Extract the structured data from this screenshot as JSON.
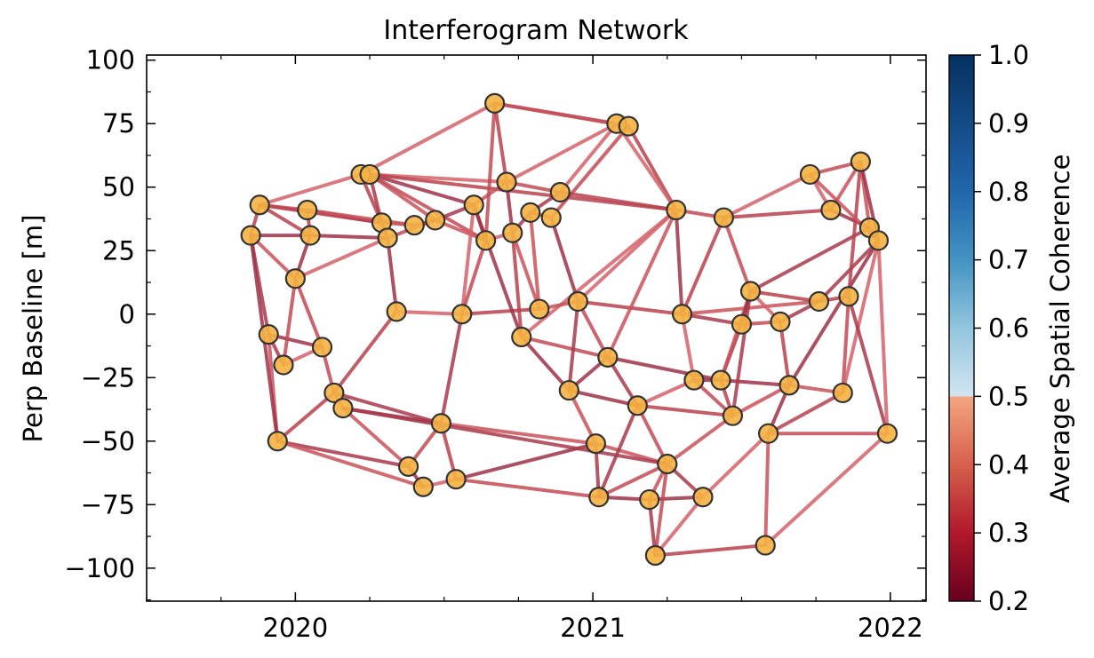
{
  "chart_data": {
    "type": "scatter",
    "title": "Interferogram Network",
    "xlabel": "",
    "ylabel": "Perp Baseline [m]",
    "xlim": [
      2019.5,
      2022.12
    ],
    "ylim": [
      -113,
      102
    ],
    "x_ticks": [
      2020,
      2021,
      2022
    ],
    "y_ticks": [
      -100,
      -75,
      -50,
      -25,
      0,
      25,
      50,
      75,
      100
    ],
    "colorbar": {
      "label": "Average Spatial Coherence",
      "range": [
        0.2,
        1.0
      ],
      "ticks": [
        0.2,
        0.3,
        0.4,
        0.5,
        0.6,
        0.7,
        0.8,
        0.9,
        1.0
      ],
      "colormap": "RdBu",
      "edge_color_sample": "#b8424e"
    },
    "node_style": {
      "face": "#f5b342",
      "edge": "#333333"
    },
    "nodes": [
      [
        2019.85,
        31
      ],
      [
        2019.88,
        43
      ],
      [
        2019.91,
        -8
      ],
      [
        2019.96,
        -20
      ],
      [
        2019.94,
        -50
      ],
      [
        2020.0,
        14
      ],
      [
        2020.04,
        41
      ],
      [
        2020.05,
        31
      ],
      [
        2020.09,
        -13
      ],
      [
        2020.13,
        -31
      ],
      [
        2020.16,
        -37
      ],
      [
        2020.22,
        55
      ],
      [
        2020.25,
        55
      ],
      [
        2020.29,
        36
      ],
      [
        2020.31,
        30
      ],
      [
        2020.34,
        1
      ],
      [
        2020.4,
        35
      ],
      [
        2020.47,
        37
      ],
      [
        2020.38,
        -60
      ],
      [
        2020.43,
        -68
      ],
      [
        2020.49,
        -43
      ],
      [
        2020.54,
        -65
      ],
      [
        2020.56,
        0
      ],
      [
        2020.6,
        43
      ],
      [
        2020.64,
        29
      ],
      [
        2020.67,
        83
      ],
      [
        2020.71,
        52
      ],
      [
        2020.73,
        32
      ],
      [
        2020.76,
        -9
      ],
      [
        2020.79,
        40
      ],
      [
        2020.82,
        2
      ],
      [
        2020.86,
        38
      ],
      [
        2020.89,
        48
      ],
      [
        2020.92,
        -30
      ],
      [
        2020.95,
        5
      ],
      [
        2021.01,
        -51
      ],
      [
        2021.02,
        -72
      ],
      [
        2021.08,
        75
      ],
      [
        2021.12,
        74
      ],
      [
        2021.05,
        -17
      ],
      [
        2021.15,
        -36
      ],
      [
        2021.19,
        -73
      ],
      [
        2021.21,
        -95
      ],
      [
        2021.25,
        -59
      ],
      [
        2021.28,
        41
      ],
      [
        2021.3,
        0
      ],
      [
        2021.34,
        -26
      ],
      [
        2021.37,
        -72
      ],
      [
        2021.43,
        -26
      ],
      [
        2021.44,
        38
      ],
      [
        2021.47,
        -40
      ],
      [
        2021.5,
        -4
      ],
      [
        2021.53,
        9
      ],
      [
        2021.59,
        -47
      ],
      [
        2021.58,
        -91
      ],
      [
        2021.63,
        -3
      ],
      [
        2021.66,
        -28
      ],
      [
        2021.73,
        55
      ],
      [
        2021.76,
        5
      ],
      [
        2021.8,
        41
      ],
      [
        2021.84,
        -31
      ],
      [
        2021.86,
        7
      ],
      [
        2021.9,
        60
      ],
      [
        2021.93,
        34
      ],
      [
        2021.96,
        29
      ],
      [
        2021.99,
        -47
      ]
    ],
    "edges": [
      [
        0,
        1
      ],
      [
        0,
        2
      ],
      [
        0,
        5
      ],
      [
        0,
        7
      ],
      [
        1,
        6
      ],
      [
        1,
        11
      ],
      [
        1,
        13
      ],
      [
        2,
        3
      ],
      [
        2,
        4
      ],
      [
        2,
        8
      ],
      [
        3,
        5
      ],
      [
        3,
        8
      ],
      [
        4,
        9
      ],
      [
        4,
        18
      ],
      [
        4,
        19
      ],
      [
        5,
        7
      ],
      [
        5,
        8
      ],
      [
        5,
        14
      ],
      [
        6,
        7
      ],
      [
        6,
        13
      ],
      [
        6,
        16
      ],
      [
        7,
        14
      ],
      [
        8,
        9
      ],
      [
        9,
        10
      ],
      [
        9,
        15
      ],
      [
        9,
        20
      ],
      [
        10,
        18
      ],
      [
        10,
        20
      ],
      [
        11,
        12
      ],
      [
        11,
        25
      ],
      [
        11,
        13
      ],
      [
        12,
        13
      ],
      [
        12,
        17
      ],
      [
        12,
        23
      ],
      [
        12,
        24
      ],
      [
        12,
        26
      ],
      [
        12,
        44
      ],
      [
        13,
        14
      ],
      [
        13,
        16
      ],
      [
        14,
        15
      ],
      [
        14,
        17
      ],
      [
        15,
        22
      ],
      [
        16,
        17
      ],
      [
        17,
        23
      ],
      [
        17,
        24
      ],
      [
        18,
        19
      ],
      [
        18,
        20
      ],
      [
        19,
        21
      ],
      [
        20,
        21
      ],
      [
        20,
        22
      ],
      [
        20,
        35
      ],
      [
        21,
        35
      ],
      [
        21,
        36
      ],
      [
        22,
        23
      ],
      [
        22,
        30
      ],
      [
        23,
        24
      ],
      [
        23,
        26
      ],
      [
        23,
        28
      ],
      [
        24,
        25
      ],
      [
        24,
        27
      ],
      [
        25,
        26
      ],
      [
        25,
        37
      ],
      [
        25,
        38
      ],
      [
        26,
        27
      ],
      [
        26,
        32
      ],
      [
        26,
        37
      ],
      [
        27,
        28
      ],
      [
        27,
        29
      ],
      [
        27,
        30
      ],
      [
        28,
        33
      ],
      [
        28,
        39
      ],
      [
        28,
        44
      ],
      [
        29,
        31
      ],
      [
        29,
        32
      ],
      [
        30,
        34
      ],
      [
        31,
        34
      ],
      [
        31,
        38
      ],
      [
        32,
        37
      ],
      [
        32,
        44
      ],
      [
        33,
        34
      ],
      [
        33,
        35
      ],
      [
        33,
        40
      ],
      [
        34,
        39
      ],
      [
        34,
        44
      ],
      [
        34,
        45
      ],
      [
        35,
        36
      ],
      [
        35,
        43
      ],
      [
        36,
        41
      ],
      [
        36,
        43
      ],
      [
        37,
        38
      ],
      [
        38,
        44
      ],
      [
        39,
        40
      ],
      [
        39,
        44
      ],
      [
        39,
        48
      ],
      [
        40,
        43
      ],
      [
        40,
        46
      ],
      [
        40,
        50
      ],
      [
        41,
        42
      ],
      [
        41,
        43
      ],
      [
        41,
        47
      ],
      [
        42,
        43
      ],
      [
        42,
        47
      ],
      [
        42,
        54
      ],
      [
        43,
        47
      ],
      [
        43,
        50
      ],
      [
        44,
        45
      ],
      [
        44,
        49
      ],
      [
        45,
        46
      ],
      [
        45,
        49
      ],
      [
        45,
        51
      ],
      [
        45,
        58
      ],
      [
        46,
        48
      ],
      [
        46,
        50
      ],
      [
        47,
        53
      ],
      [
        48,
        50
      ],
      [
        48,
        51
      ],
      [
        48,
        52
      ],
      [
        48,
        56
      ],
      [
        49,
        52
      ],
      [
        49,
        57
      ],
      [
        49,
        59
      ],
      [
        50,
        52
      ],
      [
        50,
        56
      ],
      [
        51,
        52
      ],
      [
        51,
        55
      ],
      [
        52,
        55
      ],
      [
        52,
        58
      ],
      [
        52,
        63
      ],
      [
        53,
        54
      ],
      [
        53,
        56
      ],
      [
        53,
        65
      ],
      [
        54,
        65
      ],
      [
        55,
        56
      ],
      [
        55,
        58
      ],
      [
        56,
        60
      ],
      [
        56,
        64
      ],
      [
        57,
        62
      ],
      [
        57,
        59
      ],
      [
        58,
        61
      ],
      [
        58,
        64
      ],
      [
        59,
        62
      ],
      [
        59,
        63
      ],
      [
        60,
        61
      ],
      [
        60,
        64
      ],
      [
        61,
        62
      ],
      [
        61,
        65
      ],
      [
        62,
        63
      ],
      [
        62,
        64
      ],
      [
        63,
        64
      ],
      [
        64,
        65
      ],
      [
        1,
        7
      ],
      [
        10,
        43
      ],
      [
        29,
        30
      ],
      [
        33,
        39
      ],
      [
        22,
        24
      ],
      [
        37,
        44
      ],
      [
        53,
        60
      ],
      [
        36,
        40
      ],
      [
        57,
        64
      ],
      [
        0,
        4
      ]
    ]
  }
}
